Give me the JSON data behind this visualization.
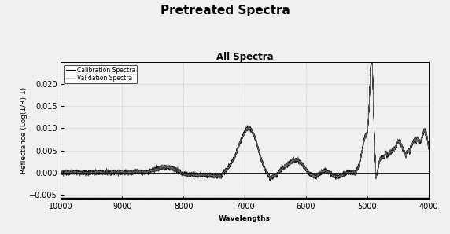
{
  "title": "Pretreated Spectra",
  "subtitle": "All Spectra",
  "xlabel": "Wavelengths",
  "ylabel": "Reflectance (Log(1/R) 1)",
  "xlim": [
    10000,
    4000
  ],
  "ylim": [
    -0.006,
    0.025
  ],
  "yticks": [
    -0.005,
    0.0,
    0.005,
    0.01,
    0.015,
    0.02
  ],
  "xticks": [
    10000,
    9000,
    8000,
    7000,
    6000,
    5000,
    4000
  ],
  "legend_labels": [
    "Calibration Spectra",
    "Validation Spectra"
  ],
  "cal_color": "#000000",
  "val_color": "#888888",
  "grid_color": "#999999",
  "bg_color": "#f0f0f0",
  "title_fontsize": 11,
  "subtitle_fontsize": 8.5,
  "label_fontsize": 6.5,
  "tick_fontsize": 7,
  "legend_fontsize": 5.5,
  "n_cal": 20,
  "n_val": 6
}
